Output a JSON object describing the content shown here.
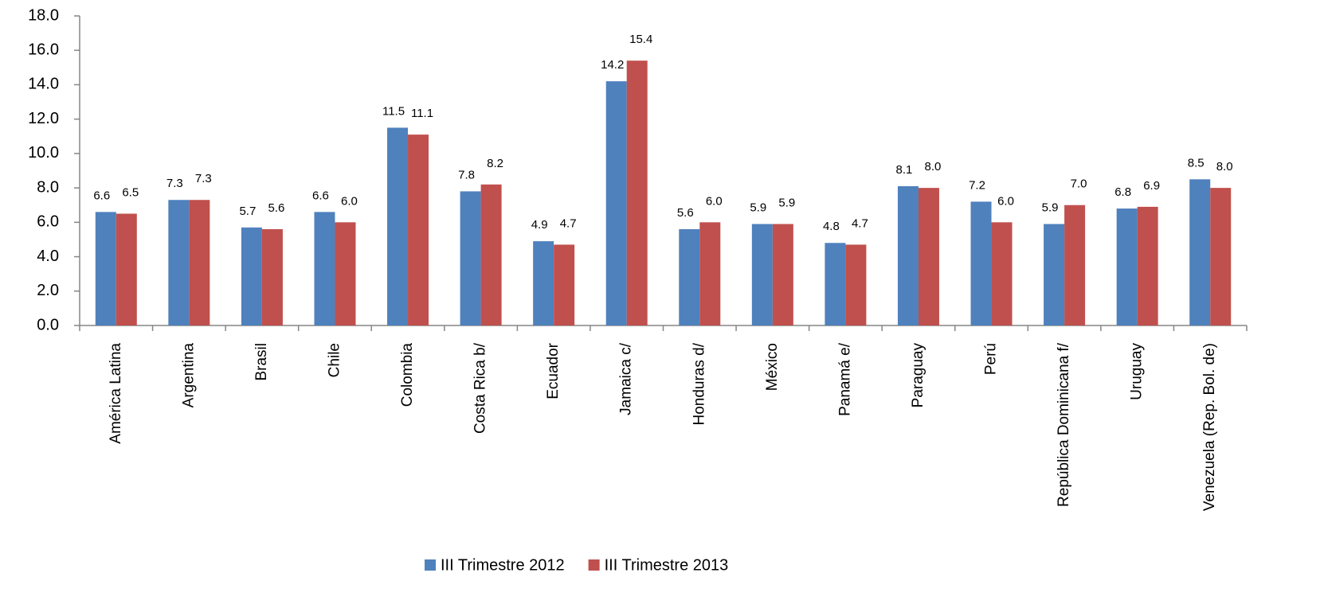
{
  "chart_data": {
    "type": "bar",
    "categories": [
      "América Latina",
      "Argentina",
      "Brasil",
      "Chile",
      "Colombia",
      "Costa Rica b/",
      "Ecuador",
      "Jamaica c/",
      "Honduras d/",
      "México",
      "Panamá e/",
      "Paraguay",
      "Perú",
      "República Dominicana f/",
      "Uruguay",
      "Venezuela (Rep. Bol. de)"
    ],
    "series": [
      {
        "name": "III Trimestre 2012",
        "color": "#4f81bd",
        "values": [
          6.6,
          7.3,
          5.7,
          6.6,
          11.5,
          7.8,
          4.9,
          14.2,
          5.6,
          5.9,
          4.8,
          8.1,
          7.2,
          5.9,
          6.8,
          8.5
        ],
        "value_labels": [
          "6.6",
          "7.3",
          "5.7",
          "6.6",
          "11.5",
          "7.8",
          "4.9",
          "14.2",
          "5.6",
          "5.9",
          "4.8",
          "8.1",
          "7.2",
          "5.9",
          "6.8",
          "8.5"
        ]
      },
      {
        "name": "III Trimestre 2013",
        "color": "#c0504d",
        "values": [
          6.5,
          7.3,
          5.6,
          6.0,
          11.1,
          8.2,
          4.7,
          15.4,
          6.0,
          5.9,
          4.7,
          8.0,
          6.0,
          7.0,
          6.9,
          8.0
        ],
        "value_labels": [
          "6.5",
          "7.3",
          "5.6",
          "6.0",
          "11.1",
          "8.2",
          "4.7",
          "15.4",
          "6.0",
          "5.9",
          "4.7",
          "8.0",
          "6.0",
          "7.0",
          "6.9",
          "8.0"
        ]
      }
    ],
    "ylim": [
      0,
      18
    ],
    "yticks": [
      {
        "value": 0,
        "label": "0.0"
      },
      {
        "value": 2,
        "label": "2.0"
      },
      {
        "value": 4,
        "label": "4.0"
      },
      {
        "value": 6,
        "label": "6.0"
      },
      {
        "value": 8,
        "label": "8.0"
      },
      {
        "value": 10,
        "label": "10.0"
      },
      {
        "value": 12,
        "label": "12.0"
      },
      {
        "value": 14,
        "label": "14.0"
      },
      {
        "value": 16,
        "label": "16.0"
      },
      {
        "value": 18,
        "label": "18.0"
      }
    ],
    "legend": "bottom"
  }
}
